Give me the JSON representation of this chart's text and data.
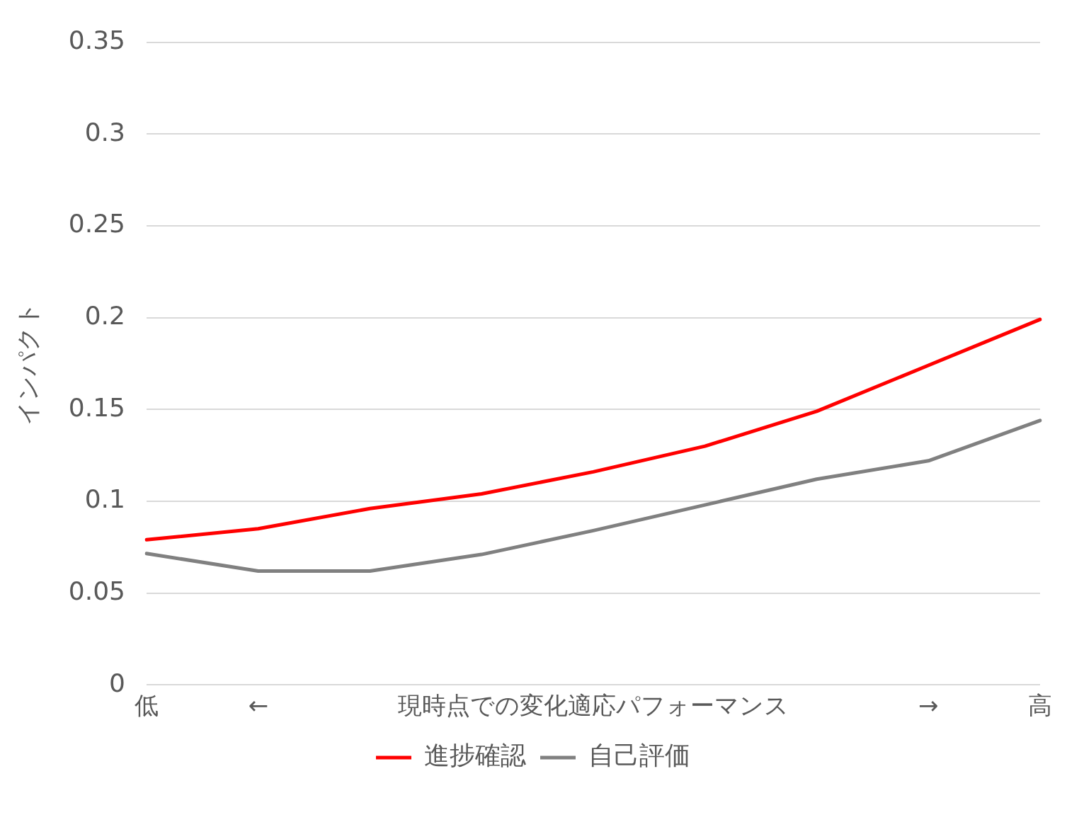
{
  "chart_data": {
    "type": "line",
    "ylabel": "インパクト",
    "categories": [
      "低",
      "←",
      null,
      null,
      "現時点での変化適応パフォーマンス",
      null,
      null,
      "→",
      "高"
    ],
    "series": [
      {
        "name": "進捗確認",
        "color": "#ff0000",
        "values": [
          0.079,
          0.085,
          0.096,
          0.104,
          0.116,
          0.13,
          0.149,
          0.174,
          0.199
        ]
      },
      {
        "name": "自己評価",
        "color": "#808080",
        "values": [
          0.0715,
          0.062,
          0.062,
          0.071,
          0.084,
          0.098,
          0.112,
          0.122,
          0.144
        ]
      }
    ],
    "ylim": [
      0,
      0.35
    ],
    "yticks": [
      0,
      0.05,
      0.1,
      0.15,
      0.2,
      0.25,
      0.3,
      0.35
    ],
    "grid": "y",
    "legend": "bottom",
    "marker": "none",
    "line_style": "solid"
  }
}
